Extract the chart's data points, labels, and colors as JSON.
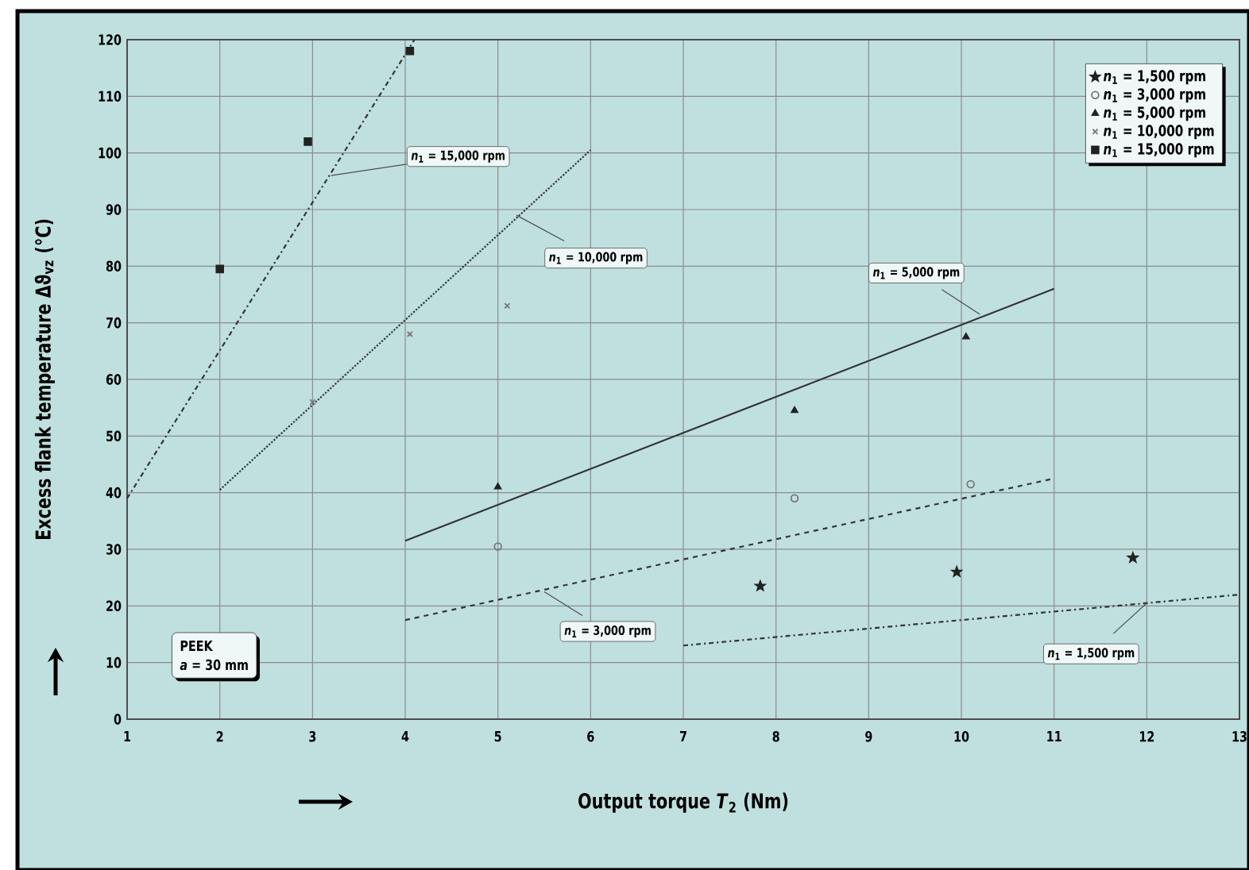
{
  "chart_data": {
    "type": "scatter",
    "xlabel": "Output torque *T*$_{2}$ (Nm)",
    "ylabel": "Excess flank temperature Δϑ$_{vz}$ (°C)",
    "xlim": [
      1,
      13
    ],
    "ylim": [
      0,
      120
    ],
    "xticks": [
      1,
      2,
      3,
      4,
      5,
      6,
      7,
      8,
      9,
      10,
      11,
      12,
      13
    ],
    "yticks": [
      0,
      10,
      20,
      30,
      40,
      50,
      60,
      70,
      80,
      90,
      100,
      110,
      120
    ],
    "grid": true,
    "legend": "top right",
    "series": [
      {
        "name": "*n*$_{1}$ = 1,500 rpm",
        "marker": "star",
        "color": "#222222",
        "x": [
          7.83,
          9.95,
          11.85
        ],
        "values": [
          23.5,
          26,
          28.5
        ]
      },
      {
        "name": "*n*$_{1}$ = 3,000 rpm",
        "marker": "circle",
        "color": "#777777",
        "x": [
          5,
          8.2,
          10.1
        ],
        "values": [
          30.5,
          39,
          41.5
        ]
      },
      {
        "name": "*n*$_{1}$ = 5,000 rpm",
        "marker": "triangle",
        "color": "#222222",
        "x": [
          5,
          8.2,
          10.05
        ],
        "values": [
          41,
          54.5,
          67.5
        ]
      },
      {
        "name": "*n*$_{1}$ = 10,000 rpm",
        "marker": "cross",
        "color": "#777777",
        "x": [
          3,
          4.05,
          5.1
        ],
        "values": [
          56,
          68,
          73
        ]
      },
      {
        "name": "*n*$_{1}$ = 15,000 rpm",
        "marker": "square",
        "color": "#222222",
        "x": [
          2,
          2.95,
          4.05
        ],
        "values": [
          79.5,
          102,
          118
        ]
      },
      {
        "type": "line",
        "marker": "none",
        "line_style": "dashdot",
        "color": "#333333",
        "x": [
          7,
          13
        ],
        "values": [
          13,
          22
        ]
      },
      {
        "type": "line",
        "marker": "none",
        "line_style": "dashed",
        "color": "#333333",
        "x": [
          4,
          11
        ],
        "values": [
          17.5,
          42.5
        ]
      },
      {
        "type": "line",
        "marker": "none",
        "line_style": "solid",
        "color": "#333333",
        "x": [
          4,
          11
        ],
        "values": [
          31.5,
          76
        ]
      },
      {
        "type": "line",
        "marker": "none",
        "line_style": "dotted",
        "color": "#333333",
        "x": [
          2,
          6
        ],
        "values": [
          40.5,
          100.5
        ]
      },
      {
        "type": "line",
        "marker": "none",
        "line_style": "dashdot",
        "color": "#333333",
        "x": [
          1,
          4.1
        ],
        "values": [
          39,
          120
        ]
      }
    ],
    "annotations": [
      {
        "text": "*n*$_{1}$ = 15,000 rpm",
        "x": 3.2,
        "y": 96
      },
      {
        "text": "*n*$_{1}$ = 10,000 rpm",
        "x": 5.2,
        "y": 89
      },
      {
        "text": "*n*$_{1}$ = 5,000 rpm",
        "x": 10.2,
        "y": 71.5
      },
      {
        "text": "*n*$_{1}$ = 3,000 rpm",
        "x": 5.5,
        "y": 22.5
      },
      {
        "text": "*n*$_{1}$ = 1,500 rpm",
        "x": 12,
        "y": 20.5
      },
      "PEEK",
      "*a* = 30 mm"
    ]
  }
}
